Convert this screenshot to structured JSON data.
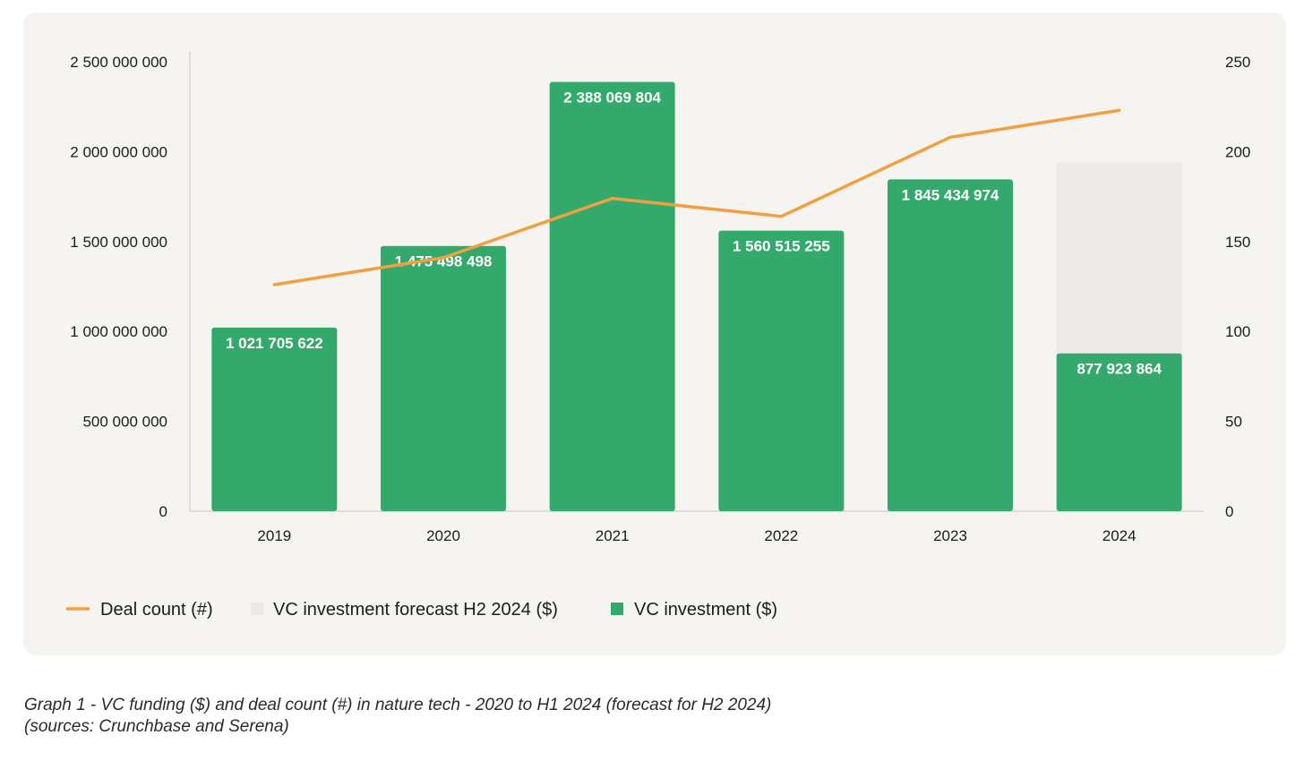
{
  "chart_data": {
    "type": "bar",
    "categories": [
      "2019",
      "2020",
      "2021",
      "2022",
      "2023",
      "2024"
    ],
    "series": [
      {
        "name": "VC investment ($)",
        "type": "bar",
        "axis": "left",
        "values": [
          1021705622,
          1475498498,
          2388069804,
          1560515255,
          1845434974,
          877923864
        ],
        "labels": [
          "1 021 705 622",
          "1 475 498 498",
          "2 388 069 804",
          "1 560 515 255",
          "1 845 434 974",
          "877 923 864"
        ],
        "color": "#33a96b"
      },
      {
        "name": "VC investment forecast H2 2024 ($)",
        "type": "bar",
        "axis": "left",
        "values": [
          null,
          null,
          null,
          null,
          null,
          1940000000
        ],
        "color": "#ece9e6"
      },
      {
        "name": "Deal count (#)",
        "type": "line",
        "axis": "right",
        "values": [
          126,
          141,
          174,
          164,
          208,
          223
        ],
        "color": "#f0a040"
      }
    ],
    "y_left": {
      "ylim": [
        0,
        2500000000
      ],
      "ticks": [
        "0",
        "500 000 000",
        "1 000 000 000",
        "1 500 000 000",
        "2 000 000 000",
        "2 500 000 000"
      ]
    },
    "y_right": {
      "ylim": [
        0,
        250
      ],
      "ticks": [
        "0",
        "50",
        "100",
        "150",
        "200",
        "250"
      ]
    },
    "legend": [
      "Deal count (#)",
      "VC investment forecast H2 2024 ($)",
      "VC investment ($)"
    ],
    "legend_position": "bottom-left",
    "grid": false
  },
  "caption": {
    "line1": "Graph 1 - VC funding ($) and deal count (#) in nature tech - 2020 to H1 2024 (forecast for H2 2024)",
    "line2": "(sources: Crunchbase and Serena)"
  }
}
